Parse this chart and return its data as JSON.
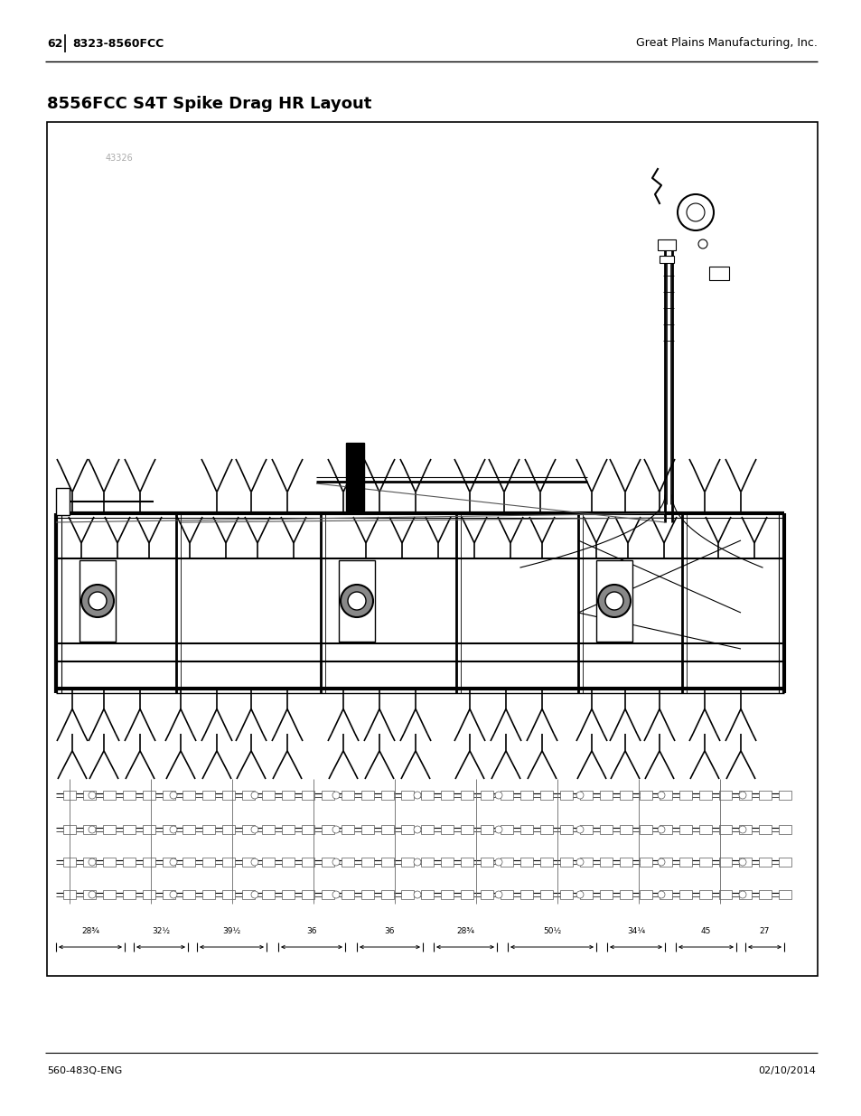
{
  "page_number": "62",
  "left_header": "8323-8560FCC",
  "right_header": "Great Plains Manufacturing, Inc.",
  "title": "8556FCC S4T Spike Drag HR Layout",
  "diagram_label": "43326",
  "footer_left": "560-483Q-ENG",
  "footer_right": "02/10/2014",
  "bg_color": "#ffffff",
  "header_font_size": 9,
  "title_font_size": 13,
  "footer_font_size": 8,
  "diagram_label_color": "#aaaaaa",
  "dimension_labels": [
    "28¾",
    "32½",
    "39½",
    "36",
    "36",
    "28¾",
    "50½",
    "34¼",
    "45",
    "27"
  ]
}
